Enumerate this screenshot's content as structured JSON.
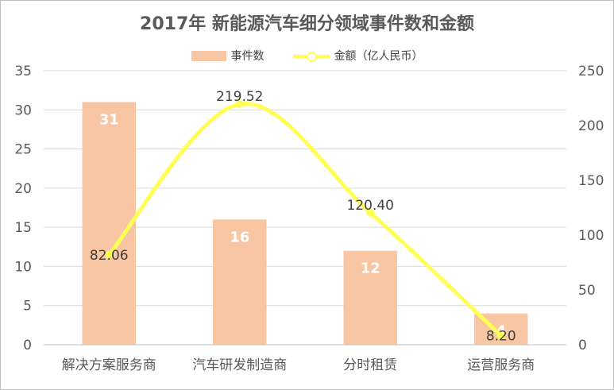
{
  "chart_data": {
    "type": "bar",
    "title": "2017年 新能源汽车细分领域事件数和金额",
    "categories": [
      "解决方案服务商",
      "汽车研发制造商",
      "分时租赁",
      "运营服务商"
    ],
    "series": [
      {
        "name": "事件数",
        "type": "bar",
        "axis": "left",
        "values": [
          31,
          16,
          12,
          4
        ],
        "labels": [
          "31",
          "16",
          "12",
          "4"
        ],
        "color": "#f8c6a3"
      },
      {
        "name": "金额（亿人民币）",
        "type": "line",
        "axis": "right",
        "values": [
          82.06,
          219.52,
          120.4,
          8.2
        ],
        "labels": [
          "82.06",
          "219.52",
          "120.40",
          "8.20"
        ],
        "color": "#ffff55"
      }
    ],
    "y_left": {
      "min": 0,
      "max": 35,
      "ticks": [
        0,
        5,
        10,
        15,
        20,
        25,
        30,
        35
      ]
    },
    "y_right": {
      "min": 0,
      "max": 250,
      "ticks": [
        0,
        50,
        100,
        150,
        200,
        250
      ]
    },
    "grid": true,
    "legend_position": "top"
  }
}
